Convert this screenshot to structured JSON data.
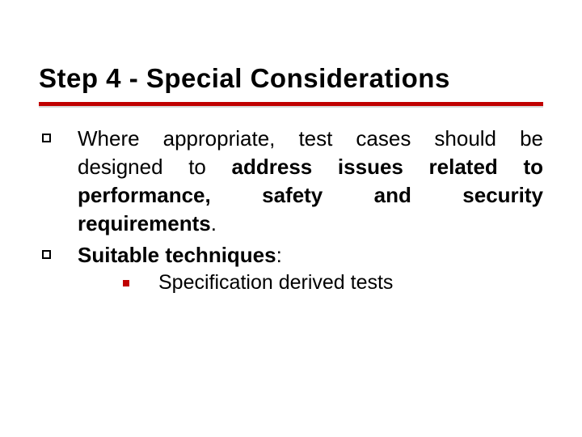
{
  "slide": {
    "title": "Step 4 - Special Considerations",
    "divider_color": "#c00000",
    "bullets": {
      "item1_prefix": "Where appropriate, test cases should be designed to ",
      "item1_bold": "address issues related to performance, safety and security requirements",
      "item1_suffix": ".",
      "item2_bold": "Suitable techniques",
      "item2_suffix": ":",
      "sub1": "Specification derived tests"
    },
    "styling": {
      "title_fontsize": 33,
      "body_fontsize": 26,
      "sub_fontsize": 25,
      "background": "#ffffff",
      "text_color": "#000000",
      "accent_color": "#c00000",
      "font_family": "Verdana"
    }
  }
}
